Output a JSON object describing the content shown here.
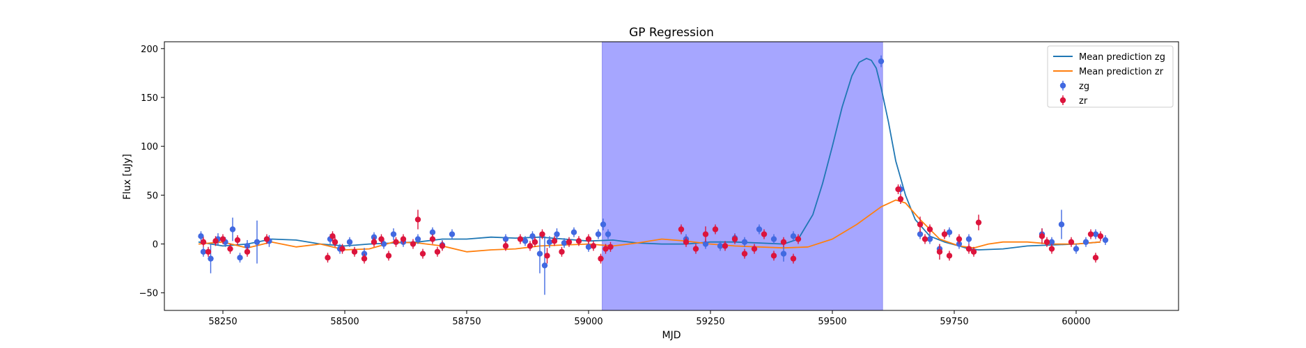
{
  "chart_data": {
    "type": "scatter",
    "title": "GP Regression",
    "xlabel": "MJD",
    "ylabel": "Flux [uJy]",
    "xlim": [
      58130,
      60210
    ],
    "ylim": [
      -68,
      207
    ],
    "xticks": [
      58250,
      58500,
      58750,
      59000,
      59250,
      59500,
      59750,
      60000
    ],
    "yticks": [
      -50,
      0,
      50,
      100,
      150,
      200
    ],
    "legend_position": "top-right",
    "shaded_region": {
      "x_start": 59028,
      "x_end": 59603,
      "color": "#a6a6ff"
    },
    "mean_lines": [
      {
        "name": "Mean prediction zg",
        "color": "#1f77b4",
        "x": [
          58200,
          58250,
          58300,
          58350,
          58400,
          58450,
          58500,
          58550,
          58600,
          58650,
          58700,
          58750,
          58800,
          58850,
          58900,
          58950,
          59000,
          59050,
          59100,
          59150,
          59200,
          59250,
          59300,
          59350,
          59400,
          59430,
          59460,
          59480,
          59500,
          59520,
          59540,
          59555,
          59570,
          59580,
          59590,
          59600,
          59615,
          59630,
          59650,
          59670,
          59700,
          59730,
          59760,
          59780,
          59800,
          59850,
          59900,
          59950,
          60000,
          60050
        ],
        "y": [
          2,
          -2,
          0,
          5,
          4,
          0,
          -2,
          0,
          1,
          2,
          5,
          5,
          7,
          6,
          7,
          5,
          3,
          4,
          1,
          0,
          0,
          2,
          2,
          1,
          0,
          5,
          30,
          62,
          100,
          140,
          172,
          186,
          190,
          188,
          180,
          160,
          125,
          85,
          50,
          25,
          8,
          2,
          -2,
          -5,
          -6,
          -5,
          -2,
          -1,
          0,
          2
        ]
      },
      {
        "name": "Mean prediction zr",
        "color": "#ff7f0e",
        "x": [
          58200,
          58250,
          58300,
          58350,
          58400,
          58450,
          58500,
          58550,
          58600,
          58650,
          58700,
          58750,
          58800,
          58850,
          58900,
          58950,
          59000,
          59050,
          59100,
          59150,
          59200,
          59250,
          59300,
          59350,
          59400,
          59450,
          59500,
          59550,
          59600,
          59630,
          59650,
          59680,
          59720,
          59760,
          59790,
          59820,
          59850,
          59900,
          59950,
          60000,
          60050
        ],
        "y": [
          0,
          2,
          -4,
          2,
          -3,
          0,
          -6,
          -5,
          2,
          1,
          -2,
          -8,
          -6,
          -5,
          -2,
          -1,
          0,
          -2,
          1,
          5,
          3,
          0,
          -2,
          -3,
          -4,
          -3,
          5,
          20,
          38,
          45,
          42,
          25,
          5,
          -2,
          -4,
          0,
          2,
          2,
          0,
          0,
          2
        ]
      }
    ],
    "series": [
      {
        "name": "zg",
        "color": "#4169e1",
        "x": [
          58205,
          58210,
          58225,
          58240,
          58255,
          58270,
          58285,
          58300,
          58320,
          58345,
          58470,
          58490,
          58510,
          58540,
          58560,
          58580,
          58600,
          58620,
          58650,
          58680,
          58700,
          58720,
          58830,
          58870,
          58885,
          58900,
          58910,
          58920,
          58935,
          58950,
          58970,
          59000,
          59020,
          59030,
          59040,
          59200,
          59240,
          59270,
          59300,
          59320,
          59350,
          59380,
          59400,
          59420,
          59600,
          59640,
          59680,
          59700,
          59720,
          59740,
          59760,
          59780,
          59930,
          59950,
          59970,
          60000,
          60020,
          60040,
          60060
        ],
        "y": [
          8,
          -8,
          -15,
          5,
          2,
          15,
          -14,
          -2,
          2,
          3,
          5,
          -5,
          2,
          -10,
          7,
          0,
          10,
          2,
          5,
          12,
          -1,
          10,
          5,
          3,
          8,
          -10,
          -22,
          2,
          10,
          1,
          12,
          -3,
          10,
          20,
          10,
          5,
          0,
          -2,
          6,
          2,
          15,
          5,
          -10,
          8,
          187,
          56,
          10,
          5,
          -5,
          12,
          0,
          5,
          10,
          2,
          20,
          -5,
          2,
          10,
          4
        ],
        "err": [
          5,
          5,
          15,
          6,
          5,
          12,
          5,
          6,
          22,
          6,
          5,
          5,
          5,
          6,
          5,
          5,
          6,
          5,
          5,
          5,
          5,
          5,
          5,
          5,
          5,
          20,
          30,
          6,
          6,
          5,
          5,
          5,
          5,
          6,
          5,
          5,
          5,
          5,
          5,
          5,
          5,
          5,
          8,
          5,
          6,
          5,
          5,
          5,
          5,
          5,
          5,
          5,
          6,
          5,
          15,
          5,
          5,
          5,
          5
        ]
      },
      {
        "name": "zr",
        "color": "#dc143c",
        "x": [
          58210,
          58220,
          58235,
          58250,
          58265,
          58280,
          58300,
          58340,
          58465,
          58475,
          58480,
          58495,
          58520,
          58540,
          58560,
          58575,
          58590,
          58605,
          58620,
          58640,
          58650,
          58660,
          58680,
          58690,
          58700,
          58830,
          58860,
          58880,
          58890,
          58905,
          58915,
          58930,
          58945,
          58960,
          58980,
          59000,
          59010,
          59025,
          59035,
          59045,
          59190,
          59200,
          59220,
          59240,
          59260,
          59280,
          59300,
          59320,
          59340,
          59360,
          59380,
          59400,
          59420,
          59430,
          59635,
          59640,
          59680,
          59690,
          59700,
          59720,
          59730,
          59740,
          59760,
          59780,
          59790,
          59800,
          59930,
          59940,
          59950,
          59990,
          60030,
          60040,
          60050
        ],
        "y": [
          2,
          -8,
          3,
          5,
          -5,
          4,
          -8,
          5,
          -14,
          8,
          2,
          -5,
          -8,
          -15,
          2,
          5,
          -12,
          2,
          5,
          0,
          25,
          -10,
          5,
          -8,
          -2,
          -2,
          5,
          -2,
          2,
          10,
          -12,
          3,
          -8,
          2,
          3,
          5,
          -2,
          -15,
          -5,
          -3,
          15,
          2,
          -5,
          10,
          15,
          -2,
          5,
          -10,
          -5,
          10,
          -12,
          2,
          -15,
          5,
          56,
          46,
          20,
          5,
          15,
          -8,
          10,
          -12,
          5,
          -5,
          -8,
          22,
          8,
          2,
          -5,
          2,
          10,
          -14,
          8
        ],
        "err": [
          5,
          5,
          5,
          5,
          5,
          5,
          5,
          5,
          5,
          5,
          5,
          5,
          5,
          5,
          5,
          5,
          5,
          5,
          5,
          5,
          10,
          5,
          5,
          5,
          5,
          5,
          5,
          5,
          5,
          5,
          8,
          5,
          5,
          5,
          5,
          5,
          5,
          5,
          5,
          5,
          5,
          5,
          5,
          8,
          5,
          5,
          5,
          5,
          5,
          5,
          5,
          5,
          5,
          5,
          5,
          5,
          8,
          5,
          5,
          8,
          5,
          5,
          5,
          5,
          5,
          8,
          8,
          5,
          5,
          5,
          5,
          5,
          5
        ]
      }
    ]
  }
}
